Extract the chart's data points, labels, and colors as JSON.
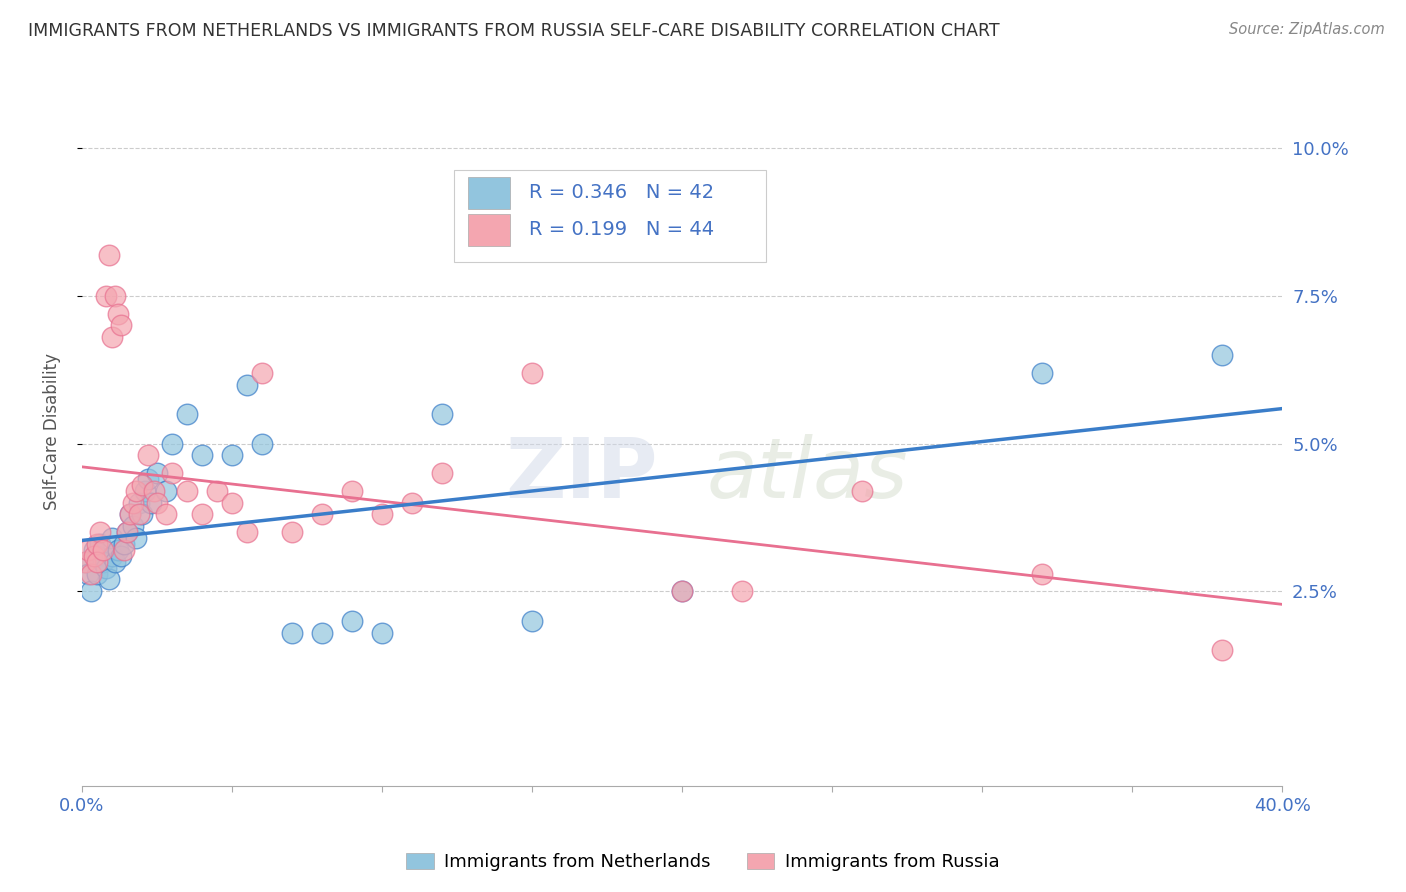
{
  "title": "IMMIGRANTS FROM NETHERLANDS VS IMMIGRANTS FROM RUSSIA SELF-CARE DISABILITY CORRELATION CHART",
  "source": "Source: ZipAtlas.com",
  "ylabel": "Self-Care Disability",
  "ylabel_right_ticks": [
    "10.0%",
    "7.5%",
    "5.0%",
    "2.5%"
  ],
  "ylabel_right_vals": [
    0.1,
    0.075,
    0.05,
    0.025
  ],
  "xlim": [
    0.0,
    0.4
  ],
  "ylim": [
    -0.008,
    0.112
  ],
  "legend1_R": "0.346",
  "legend1_N": "42",
  "legend2_R": "0.199",
  "legend2_N": "44",
  "color_netherlands": "#92c5de",
  "color_russia": "#f4a6b0",
  "line_color_netherlands": "#3a7dc9",
  "line_color_russia": "#e87090",
  "background_color": "#ffffff",
  "grid_color": "#cccccc",
  "netherlands_x": [
    0.001,
    0.002,
    0.003,
    0.004,
    0.005,
    0.005,
    0.006,
    0.007,
    0.008,
    0.009,
    0.01,
    0.01,
    0.011,
    0.012,
    0.013,
    0.014,
    0.015,
    0.016,
    0.017,
    0.018,
    0.019,
    0.02,
    0.021,
    0.022,
    0.023,
    0.025,
    0.028,
    0.03,
    0.035,
    0.04,
    0.05,
    0.055,
    0.06,
    0.07,
    0.08,
    0.09,
    0.1,
    0.12,
    0.15,
    0.2,
    0.32,
    0.38
  ],
  "netherlands_y": [
    0.03,
    0.028,
    0.025,
    0.032,
    0.031,
    0.028,
    0.033,
    0.03,
    0.029,
    0.027,
    0.031,
    0.034,
    0.03,
    0.032,
    0.031,
    0.033,
    0.035,
    0.038,
    0.036,
    0.034,
    0.04,
    0.038,
    0.042,
    0.044,
    0.04,
    0.045,
    0.042,
    0.05,
    0.055,
    0.048,
    0.048,
    0.06,
    0.05,
    0.018,
    0.018,
    0.02,
    0.018,
    0.055,
    0.02,
    0.025,
    0.062,
    0.065
  ],
  "russia_x": [
    0.001,
    0.002,
    0.003,
    0.004,
    0.005,
    0.005,
    0.006,
    0.007,
    0.008,
    0.009,
    0.01,
    0.011,
    0.012,
    0.013,
    0.014,
    0.015,
    0.016,
    0.017,
    0.018,
    0.019,
    0.02,
    0.022,
    0.024,
    0.025,
    0.028,
    0.03,
    0.035,
    0.04,
    0.045,
    0.05,
    0.055,
    0.06,
    0.07,
    0.08,
    0.09,
    0.1,
    0.11,
    0.12,
    0.15,
    0.2,
    0.22,
    0.26,
    0.32,
    0.38
  ],
  "russia_y": [
    0.03,
    0.032,
    0.028,
    0.031,
    0.033,
    0.03,
    0.035,
    0.032,
    0.075,
    0.082,
    0.068,
    0.075,
    0.072,
    0.07,
    0.032,
    0.035,
    0.038,
    0.04,
    0.042,
    0.038,
    0.043,
    0.048,
    0.042,
    0.04,
    0.038,
    0.045,
    0.042,
    0.038,
    0.042,
    0.04,
    0.035,
    0.062,
    0.035,
    0.038,
    0.042,
    0.038,
    0.04,
    0.045,
    0.062,
    0.025,
    0.025,
    0.042,
    0.028,
    0.015
  ],
  "watermark_zip": "ZIP",
  "watermark_atlas": "atlas"
}
